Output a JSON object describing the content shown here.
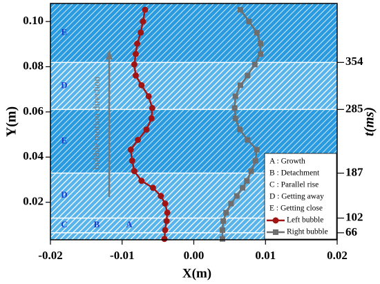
{
  "chart_data": {
    "type": "line",
    "xlabel": "X(m)",
    "ylabel": "Y(m)",
    "y2label": "t(ms)",
    "xlim": [
      -0.02,
      0.02
    ],
    "xticks": [
      -0.02,
      -0.01,
      {
        "value": 0,
        "label": "0.00"
      },
      0.01,
      0.02
    ],
    "ylim": [
      0.0034,
      0.108
    ],
    "yticks": [
      0.02,
      0.04,
      0.06,
      0.08,
      {
        "value": 0.1,
        "label": "0.10"
      }
    ],
    "phase_boundaries": [
      {
        "y": 0.0819,
        "t": 354
      },
      {
        "y": 0.0611,
        "t": 285
      },
      {
        "y": 0.0329,
        "t": 187
      },
      {
        "y": 0.013,
        "t": 102
      },
      {
        "y": 0.0065,
        "t": 66
      }
    ],
    "region_labels": [
      [
        "E"
      ],
      [
        "D"
      ],
      [
        "E"
      ],
      [
        "D"
      ],
      [
        "C",
        "B",
        "A"
      ]
    ],
    "arrow_label": "bubble motion direction",
    "phases": [
      "A : Growth",
      "B : Detachment",
      "C : Parallel rise",
      "D : Getting away",
      "E : Getting close"
    ],
    "series": [
      {
        "name": "Left bubble",
        "color": "#a01414",
        "marker": "circle",
        "x": [
          -0.0041,
          -0.004,
          -0.0038,
          -0.0037,
          -0.004,
          -0.0046,
          -0.0057,
          -0.0073,
          -0.0083,
          -0.0086,
          -0.0088,
          -0.0078,
          -0.0066,
          -0.0059,
          -0.0058,
          -0.0063,
          -0.0073,
          -0.0081,
          -0.0083,
          -0.0081,
          -0.0079,
          -0.0074,
          -0.0071,
          -0.0068
        ],
        "values": [
          0.0038,
          0.0077,
          0.0117,
          0.0154,
          0.0194,
          0.0228,
          0.0264,
          0.0295,
          0.0338,
          0.0384,
          0.0433,
          0.0476,
          0.0522,
          0.0571,
          0.0617,
          0.0669,
          0.0718,
          0.0761,
          0.081,
          0.0856,
          0.0902,
          0.0951,
          0.1,
          0.1052
        ]
      },
      {
        "name": "Right bubble",
        "color": "#6e6e6e",
        "marker": "square",
        "x": [
          0.004,
          0.004,
          0.0041,
          0.0045,
          0.0052,
          0.006,
          0.0068,
          0.0074,
          0.008,
          0.0086,
          0.0088,
          0.0075,
          0.0064,
          0.0058,
          0.0057,
          0.0058,
          0.0065,
          0.0075,
          0.0085,
          0.0093,
          0.0093,
          0.0088,
          0.0077,
          0.0065
        ],
        "values": [
          0.0038,
          0.0077,
          0.0117,
          0.0154,
          0.0194,
          0.0228,
          0.0264,
          0.0295,
          0.0338,
          0.0384,
          0.0433,
          0.0476,
          0.0522,
          0.0571,
          0.0617,
          0.0669,
          0.0718,
          0.0761,
          0.081,
          0.0856,
          0.0902,
          0.0951,
          0.1,
          0.1052
        ]
      }
    ]
  }
}
